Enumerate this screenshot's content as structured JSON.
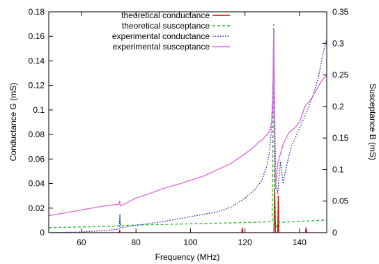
{
  "chart_data": {
    "type": "line",
    "title": "",
    "xlabel": "Frequency (MHz)",
    "ylabel": "Conductance G (mS)",
    "y2label": "Susceptance B (mS)",
    "xlim": [
      48,
      150
    ],
    "ylim": [
      0,
      0.18
    ],
    "y2lim": [
      0,
      0.35
    ],
    "x_ticks": [
      "60",
      "80",
      "100",
      "120",
      "140"
    ],
    "y_ticks": [
      "0",
      "0.02",
      "0.04",
      "0.06",
      "0.08",
      "0.1",
      "0.12",
      "0.14",
      "0.16",
      "0.18"
    ],
    "y2_ticks": [
      "0",
      "0.05",
      "0.1",
      "0.15",
      "0.2",
      "0.25",
      "0.3",
      "0.35"
    ],
    "grid": false,
    "legend_position": "top-left",
    "series": [
      {
        "name": "theoretical conductance",
        "axis": "left",
        "color": "#d40000",
        "style": "solid",
        "x": [
          48,
          73.8,
          74.0,
          74.2,
          118.8,
          119.0,
          119.2,
          130.6,
          130.9,
          131.2,
          132.0,
          132.2,
          132.4,
          142.2,
          142.4,
          142.6,
          150
        ],
        "y": [
          0,
          0,
          0.002,
          0,
          0,
          0.004,
          0,
          0,
          0.036,
          0,
          0,
          0.03,
          0,
          0,
          0.004,
          0,
          0
        ]
      },
      {
        "name": "theoretical susceptance",
        "axis": "right",
        "color": "#22bb22",
        "style": "dashed",
        "x": [
          48,
          60,
          70,
          73.8,
          74.0,
          74.3,
          80,
          90,
          100,
          110,
          120,
          128,
          130.0,
          130.5,
          130.8,
          131.1,
          131.6,
          132.2,
          140,
          150
        ],
        "y": [
          0.008,
          0.009,
          0.01,
          0.011,
          0.02,
          0.011,
          0.012,
          0.013,
          0.014,
          0.015,
          0.016,
          0.017,
          0.018,
          0.33,
          0.02,
          0.004,
          0.012,
          0.016,
          0.018,
          0.02
        ]
      },
      {
        "name": "experimental conductance",
        "axis": "left",
        "color": "#2222bb",
        "style": "dotted",
        "x": [
          48,
          60,
          70,
          73.8,
          74.1,
          74.4,
          80,
          90,
          100,
          110,
          115,
          120,
          124,
          126,
          128,
          129,
          129.7,
          130.3,
          130.6,
          130.9,
          131.3,
          132,
          133,
          134,
          135,
          137,
          139,
          141,
          143,
          145,
          147,
          148.5,
          150
        ],
        "y": [
          0.0,
          0.0005,
          0.002,
          0.003,
          0.015,
          0.004,
          0.006,
          0.009,
          0.013,
          0.017,
          0.021,
          0.028,
          0.036,
          0.042,
          0.054,
          0.066,
          0.085,
          0.125,
          0.165,
          0.095,
          0.04,
          0.032,
          0.058,
          0.04,
          0.052,
          0.07,
          0.08,
          0.09,
          0.1,
          0.112,
          0.127,
          0.145,
          0.158
        ]
      },
      {
        "name": "experimental susceptance",
        "axis": "right",
        "color": "#e066e0",
        "style": "solid",
        "x": [
          48,
          55,
          60,
          65,
          70,
          73.8,
          74.0,
          74.3,
          80,
          85,
          90,
          95,
          100,
          105,
          110,
          115,
          120,
          123,
          125,
          127,
          128.5,
          129.3,
          129.8,
          130.2,
          130.5,
          130.8,
          131.2,
          132,
          133,
          134,
          136,
          138,
          140,
          142,
          144,
          146,
          148,
          150
        ],
        "y": [
          0.027,
          0.032,
          0.036,
          0.04,
          0.043,
          0.045,
          0.05,
          0.042,
          0.055,
          0.062,
          0.07,
          0.076,
          0.083,
          0.09,
          0.1,
          0.11,
          0.125,
          0.135,
          0.143,
          0.15,
          0.158,
          0.165,
          0.175,
          0.195,
          0.32,
          0.12,
          0.07,
          0.11,
          0.125,
          0.14,
          0.158,
          0.165,
          0.175,
          0.2,
          0.21,
          0.225,
          0.24,
          0.25
        ]
      }
    ]
  }
}
